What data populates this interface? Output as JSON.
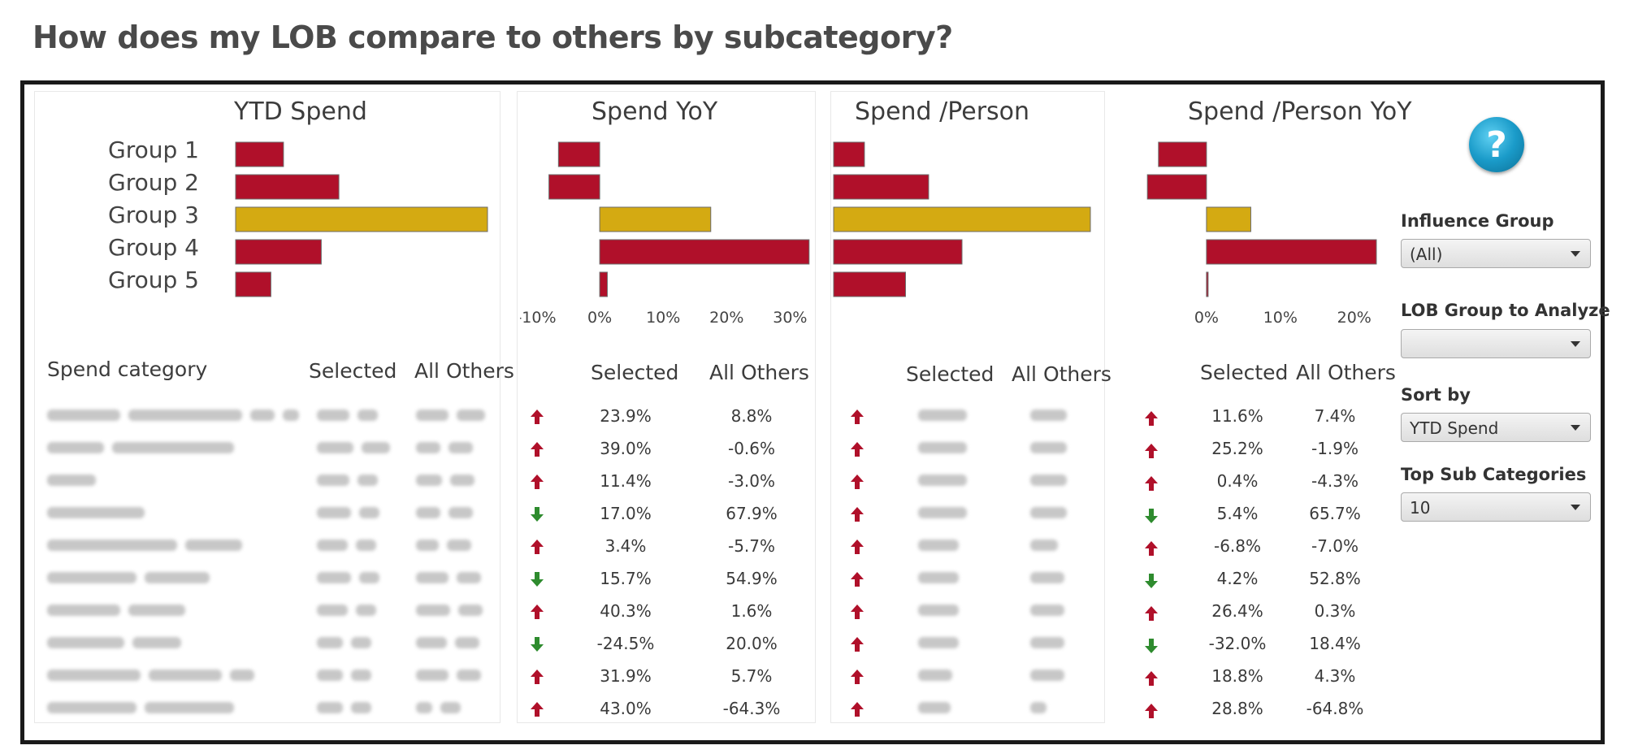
{
  "title": "How does my LOB compare to others by subcategory?",
  "colors": {
    "bar_red": "#b0102a",
    "bar_highlight": "#d4aa12",
    "arrow_up": "#b0102a",
    "arrow_down": "#2e8b2e"
  },
  "panels": {
    "ytd_spend": {
      "title": "YTD Spend"
    },
    "spend_yoy": {
      "title": "Spend YoY"
    },
    "spend_person": {
      "title": "Spend /Person"
    },
    "spend_person_yoy": {
      "title": "Spend /Person YoY"
    }
  },
  "chart_data": [
    {
      "type": "bar",
      "title": "YTD Spend",
      "orientation": "horizontal",
      "categories": [
        "Group 1",
        "Group 2",
        "Group 3",
        "Group 4",
        "Group 5"
      ],
      "values": [
        0.19,
        0.41,
        1.0,
        0.34,
        0.14
      ],
      "highlight": "Group 3",
      "axis_ticks": []
    },
    {
      "type": "bar",
      "title": "Spend YoY",
      "orientation": "horizontal",
      "categories": [
        "Group 1",
        "Group 2",
        "Group 3",
        "Group 4",
        "Group 5"
      ],
      "values": [
        -6.5,
        -8,
        17.5,
        33,
        1.2
      ],
      "highlight": "Group 3",
      "xlim": [
        -10,
        32
      ],
      "axis_ticks": [
        "-10%",
        "0%",
        "10%",
        "20%",
        "30%"
      ],
      "tick_values": [
        -10,
        0,
        10,
        20,
        30
      ]
    },
    {
      "type": "bar",
      "title": "Spend /Person",
      "orientation": "horizontal",
      "categories": [
        "Group 1",
        "Group 2",
        "Group 3",
        "Group 4",
        "Group 5"
      ],
      "values": [
        0.12,
        0.37,
        1.0,
        0.5,
        0.28
      ],
      "highlight": "Group 3",
      "axis_ticks": []
    },
    {
      "type": "bar",
      "title": "Spend /Person YoY",
      "orientation": "horizontal",
      "categories": [
        "Group 1",
        "Group 2",
        "Group 3",
        "Group 4",
        "Group 5"
      ],
      "values": [
        -6.5,
        -8,
        6,
        23,
        0.2
      ],
      "highlight": "Group 3",
      "xlim": [
        -10,
        23
      ],
      "axis_ticks": [
        "0%",
        "10%",
        "20%"
      ],
      "tick_values": [
        0,
        10,
        20
      ]
    }
  ],
  "table": {
    "category_header": "Spend category",
    "selected_header": "Selected",
    "all_others_header": "All Others",
    "rows": [
      {
        "yoy_dir": "up",
        "yoy_sel": "23.9%",
        "yoy_oth": "8.8%",
        "sp_dir": "up",
        "spp_dir": "up",
        "spp_sel": "11.6%",
        "spp_oth": "7.4%"
      },
      {
        "yoy_dir": "up",
        "yoy_sel": "39.0%",
        "yoy_oth": "-0.6%",
        "sp_dir": "up",
        "spp_dir": "up",
        "spp_sel": "25.2%",
        "spp_oth": "-1.9%"
      },
      {
        "yoy_dir": "up",
        "yoy_sel": "11.4%",
        "yoy_oth": "-3.0%",
        "sp_dir": "up",
        "spp_dir": "up",
        "spp_sel": "0.4%",
        "spp_oth": "-4.3%"
      },
      {
        "yoy_dir": "down",
        "yoy_sel": "17.0%",
        "yoy_oth": "67.9%",
        "sp_dir": "up",
        "spp_dir": "down",
        "spp_sel": "5.4%",
        "spp_oth": "65.7%"
      },
      {
        "yoy_dir": "up",
        "yoy_sel": "3.4%",
        "yoy_oth": "-5.7%",
        "sp_dir": "up",
        "spp_dir": "up",
        "spp_sel": "-6.8%",
        "spp_oth": "-7.0%"
      },
      {
        "yoy_dir": "down",
        "yoy_sel": "15.7%",
        "yoy_oth": "54.9%",
        "sp_dir": "up",
        "spp_dir": "down",
        "spp_sel": "4.2%",
        "spp_oth": "52.8%"
      },
      {
        "yoy_dir": "up",
        "yoy_sel": "40.3%",
        "yoy_oth": "1.6%",
        "sp_dir": "up",
        "spp_dir": "up",
        "spp_sel": "26.4%",
        "spp_oth": "0.3%"
      },
      {
        "yoy_dir": "down",
        "yoy_sel": "-24.5%",
        "yoy_oth": "20.0%",
        "sp_dir": "up",
        "spp_dir": "down",
        "spp_sel": "-32.0%",
        "spp_oth": "18.4%"
      },
      {
        "yoy_dir": "up",
        "yoy_sel": "31.9%",
        "yoy_oth": "5.7%",
        "sp_dir": "up",
        "spp_dir": "up",
        "spp_sel": "18.8%",
        "spp_oth": "4.3%"
      },
      {
        "yoy_dir": "up",
        "yoy_sel": "43.0%",
        "yoy_oth": "-64.3%",
        "sp_dir": "up",
        "spp_dir": "up",
        "spp_sel": "28.8%",
        "spp_oth": "-64.8%"
      }
    ]
  },
  "filters": {
    "help_icon": "question-icon",
    "influence_group": {
      "label": "Influence Group",
      "value": "(All)"
    },
    "lob_group": {
      "label": "LOB Group to Analyze",
      "value": ""
    },
    "sort_by": {
      "label": "Sort by",
      "value": "YTD Spend"
    },
    "top_sub": {
      "label": "Top Sub Categories",
      "value": "10"
    }
  }
}
